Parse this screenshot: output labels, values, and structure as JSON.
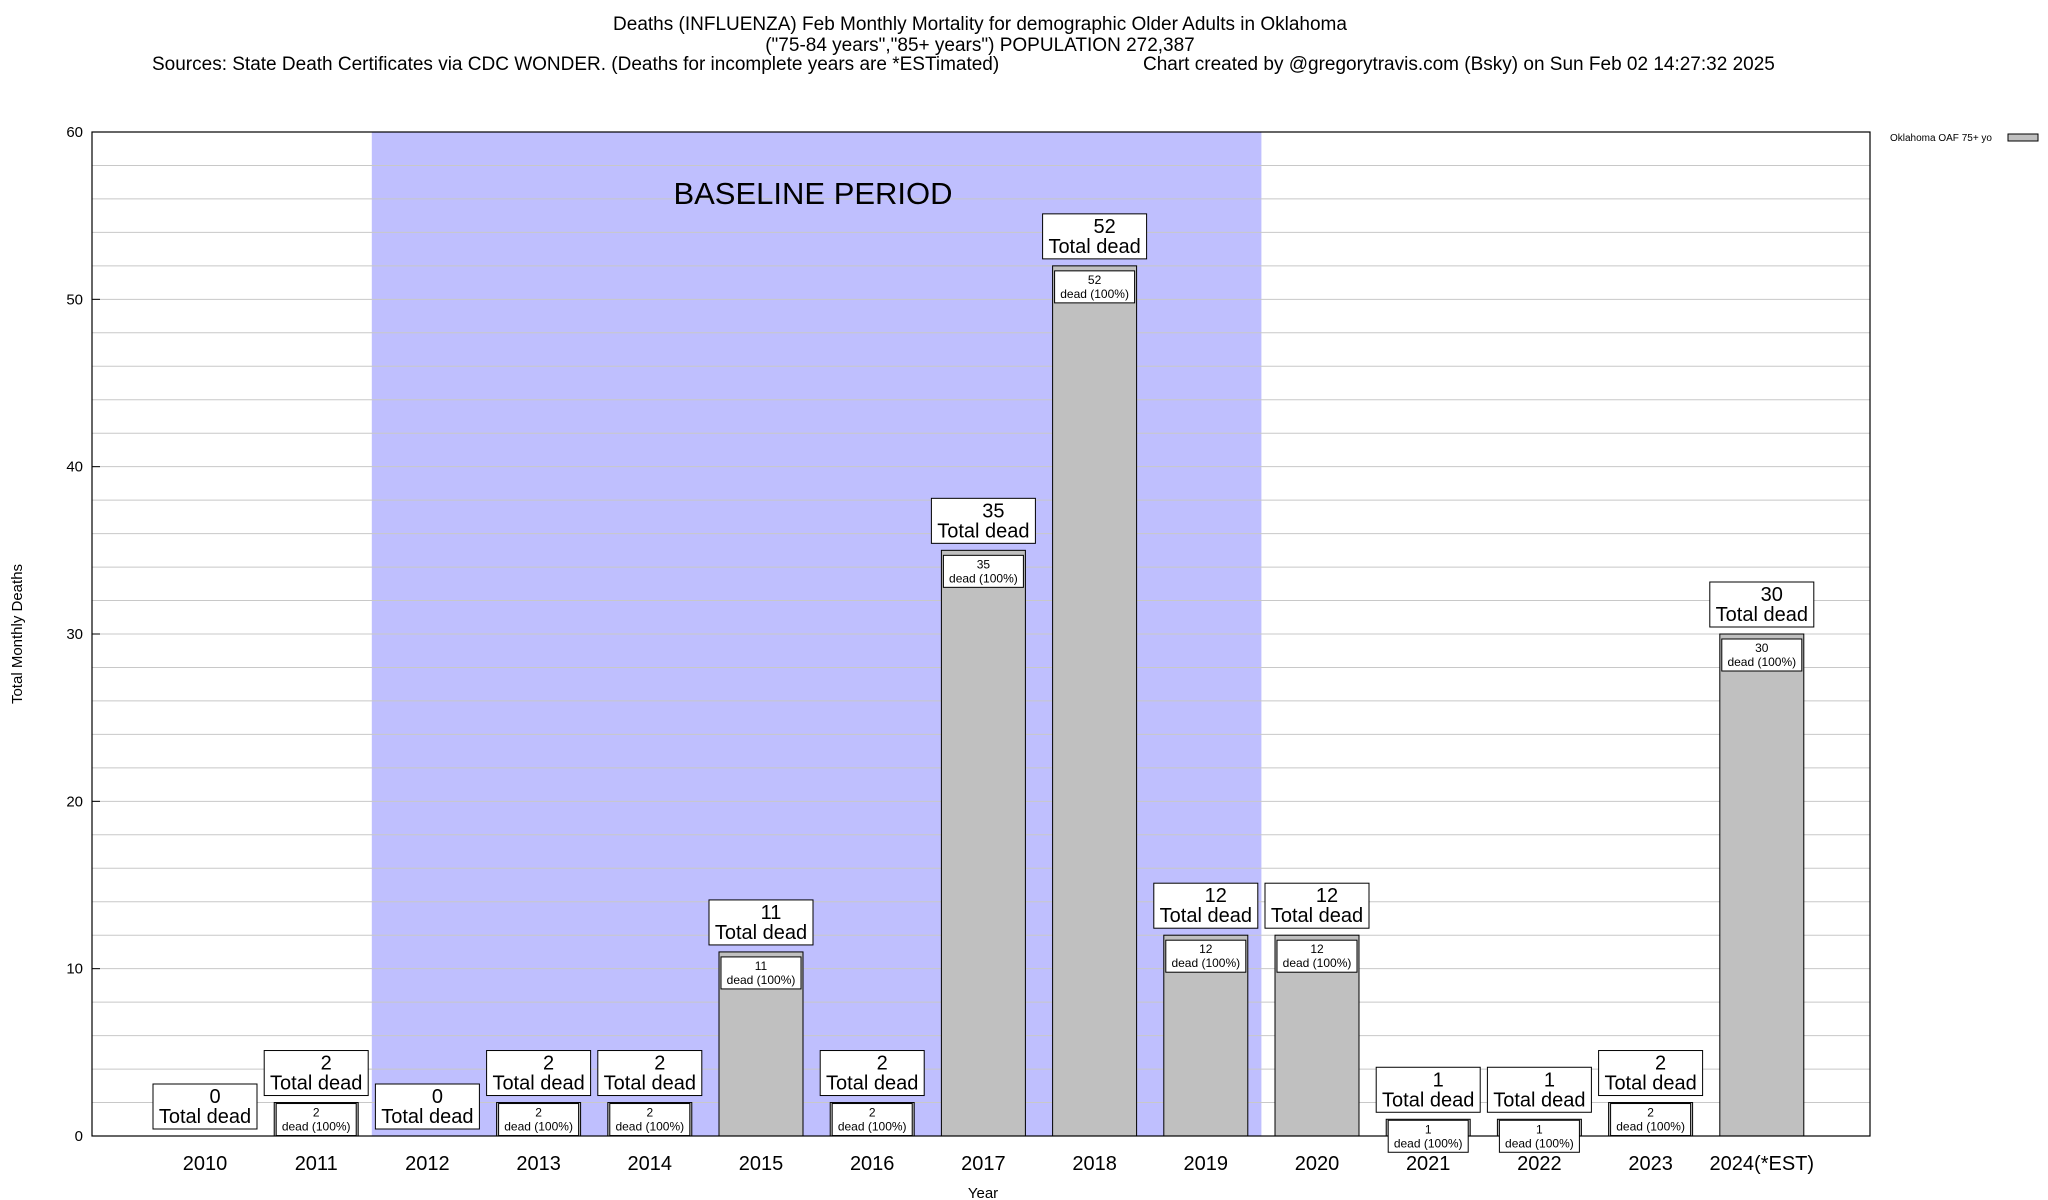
{
  "chart_data": {
    "type": "bar",
    "title": "Deaths (INFLUENZA) Feb Monthly Mortality for demographic Older Adults in Oklahoma",
    "subtitle": "(\"75-84 years\",\"85+ years\") POPULATION 272,387",
    "sources": "Sources: State Death Certificates via CDC WONDER. (Deaths for incomplete years are *ESTimated)",
    "credit": "Chart created by @gregorytravis.com (Bsky) on Sun Feb 02 14:27:32 2025",
    "xlabel": "Year",
    "ylabel": "Total Monthly Deaths",
    "ylim": [
      0,
      60
    ],
    "yticks": [
      0,
      10,
      20,
      30,
      40,
      50,
      60
    ],
    "minor_grid_step": 2,
    "grid": true,
    "legend": {
      "position": "top-right",
      "label": "Oklahoma OAF 75+ yo"
    },
    "baseline": {
      "label": "BASELINE PERIOD",
      "from": "2012",
      "to": "2019"
    },
    "categories": [
      "2010",
      "2011",
      "2012",
      "2013",
      "2014",
      "2015",
      "2016",
      "2017",
      "2018",
      "2019",
      "2020",
      "2021",
      "2022",
      "2023",
      "2024(*EST)"
    ],
    "series": [
      {
        "name": "Oklahoma OAF 75+ yo",
        "values": [
          0,
          2,
          0,
          2,
          2,
          11,
          2,
          35,
          52,
          12,
          12,
          1,
          1,
          2,
          30
        ]
      }
    ],
    "total_label": "Total dead",
    "inner_label": "dead (100%)"
  },
  "colors": {
    "bar_fill": "#c0c0c0",
    "baseline_fill": "#bfbffe",
    "grid": "#c8c8c8",
    "axis": "#000000"
  }
}
